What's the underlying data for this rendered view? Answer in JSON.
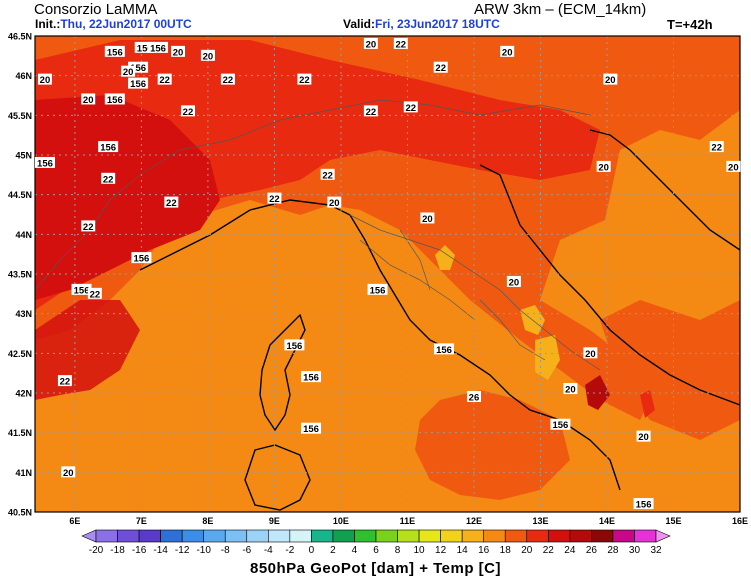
{
  "header": {
    "org": "Consorzio LaMMA",
    "model": "ARW 3km – (ECM_14km)",
    "init_label": "Init.:",
    "init_value": "Thu, 22Jun2017 00UTC",
    "valid_label": "Valid:",
    "valid_value": "Fri, 23Jun2017 18UTC",
    "lead": "T=+42h"
  },
  "axes": {
    "lat_labels": [
      "46.5N",
      "46N",
      "45.5N",
      "45N",
      "44.5N",
      "44N",
      "43.5N",
      "43N",
      "42.5N",
      "42N",
      "41.5N",
      "41N",
      "40.5N"
    ],
    "lon_labels": [
      "6E",
      "7E",
      "8E",
      "9E",
      "10E",
      "11E",
      "12E",
      "13E",
      "14E",
      "15E",
      "16E"
    ],
    "lat_range": [
      40.5,
      46.5
    ],
    "lon_range": [
      5.4,
      16.0
    ],
    "grid": "dotted"
  },
  "colorbar": {
    "ticks": [
      "-20",
      "-18",
      "-16",
      "-14",
      "-12",
      "-10",
      "-8",
      "-6",
      "-4",
      "-2",
      "0",
      "2",
      "4",
      "6",
      "8",
      "10",
      "12",
      "14",
      "16",
      "18",
      "20",
      "22",
      "24",
      "26",
      "28",
      "30",
      "32"
    ],
    "colors": [
      "#a78ef0",
      "#8c6fe6",
      "#6f4fd8",
      "#5a3ac8",
      "#2f6fd8",
      "#3a8ee8",
      "#5aa8f0",
      "#7cc0f4",
      "#9cd4f7",
      "#bfe6fa",
      "#d6f3f7",
      "#18b48a",
      "#10a050",
      "#2ec02e",
      "#7ad21a",
      "#b6e01a",
      "#e6e61a",
      "#f2d21a",
      "#f6b01a",
      "#f48a14",
      "#f05a10",
      "#e82a10",
      "#d4100e",
      "#b40a0a",
      "#8c0808",
      "#c80888",
      "#e830d8",
      "#f090f0"
    ],
    "title": "850hPa GeoPot [dam] + Temp [C]"
  },
  "contour_labels": {
    "geopotential": [
      {
        "text": "156",
        "lon": 6.6,
        "lat": 46.3
      },
      {
        "text": "156",
        "lon": 7.05,
        "lat": 46.35
      },
      {
        "text": "156",
        "lon": 7.25,
        "lat": 46.35
      },
      {
        "text": "156",
        "lon": 6.95,
        "lat": 46.1
      },
      {
        "text": "156",
        "lon": 6.95,
        "lat": 45.9
      },
      {
        "text": "156",
        "lon": 6.6,
        "lat": 45.7
      },
      {
        "text": "156",
        "lon": 6.5,
        "lat": 45.1
      },
      {
        "text": "156",
        "lon": 5.55,
        "lat": 44.9
      },
      {
        "text": "156",
        "lon": 7.0,
        "lat": 43.7
      },
      {
        "text": "156",
        "lon": 6.1,
        "lat": 43.3
      },
      {
        "text": "156",
        "lon": 9.3,
        "lat": 42.6
      },
      {
        "text": "156",
        "lon": 9.55,
        "lat": 42.2
      },
      {
        "text": "156",
        "lon": 9.55,
        "lat": 41.55
      },
      {
        "text": "156",
        "lon": 10.55,
        "lat": 43.3
      },
      {
        "text": "156",
        "lon": 11.55,
        "lat": 42.55
      },
      {
        "text": "156",
        "lon": 13.3,
        "lat": 41.6
      },
      {
        "text": "156",
        "lon": 14.55,
        "lat": 40.6
      }
    ],
    "temperature": [
      {
        "text": "20",
        "lon": 5.55,
        "lat": 45.95
      },
      {
        "text": "20",
        "lon": 6.8,
        "lat": 46.05
      },
      {
        "text": "20",
        "lon": 7.55,
        "lat": 46.3
      },
      {
        "text": "20",
        "lon": 8.0,
        "lat": 46.25
      },
      {
        "text": "20",
        "lon": 6.2,
        "lat": 45.7
      },
      {
        "text": "20",
        "lon": 10.45,
        "lat": 46.4
      },
      {
        "text": "22",
        "lon": 10.9,
        "lat": 46.4
      },
      {
        "text": "20",
        "lon": 12.5,
        "lat": 46.3
      },
      {
        "text": "22",
        "lon": 11.5,
        "lat": 46.1
      },
      {
        "text": "20",
        "lon": 14.05,
        "lat": 45.95
      },
      {
        "text": "22",
        "lon": 7.35,
        "lat": 45.95
      },
      {
        "text": "22",
        "lon": 8.3,
        "lat": 45.95
      },
      {
        "text": "22",
        "lon": 9.45,
        "lat": 45.95
      },
      {
        "text": "22",
        "lon": 7.7,
        "lat": 45.55
      },
      {
        "text": "22",
        "lon": 10.45,
        "lat": 45.55
      },
      {
        "text": "22",
        "lon": 11.05,
        "lat": 45.6
      },
      {
        "text": "22",
        "lon": 15.65,
        "lat": 45.1
      },
      {
        "text": "20",
        "lon": 15.9,
        "lat": 44.85
      },
      {
        "text": "20",
        "lon": 13.95,
        "lat": 44.85
      },
      {
        "text": "22",
        "lon": 6.5,
        "lat": 44.7
      },
      {
        "text": "22",
        "lon": 9.8,
        "lat": 44.75
      },
      {
        "text": "22",
        "lon": 7.45,
        "lat": 44.4
      },
      {
        "text": "22",
        "lon": 9.0,
        "lat": 44.45
      },
      {
        "text": "20",
        "lon": 9.9,
        "lat": 44.4
      },
      {
        "text": "22",
        "lon": 6.2,
        "lat": 44.1
      },
      {
        "text": "20",
        "lon": 11.3,
        "lat": 44.2
      },
      {
        "text": "20",
        "lon": 12.6,
        "lat": 43.4
      },
      {
        "text": "22",
        "lon": 6.3,
        "lat": 43.25
      },
      {
        "text": "20",
        "lon": 13.75,
        "lat": 42.5
      },
      {
        "text": "20",
        "lon": 13.45,
        "lat": 42.05
      },
      {
        "text": "22",
        "lon": 5.85,
        "lat": 42.15
      },
      {
        "text": "26",
        "lon": 12.0,
        "lat": 41.95
      },
      {
        "text": "20",
        "lon": 14.55,
        "lat": 41.45
      },
      {
        "text": "20",
        "lon": 5.9,
        "lat": 41.0
      }
    ]
  }
}
